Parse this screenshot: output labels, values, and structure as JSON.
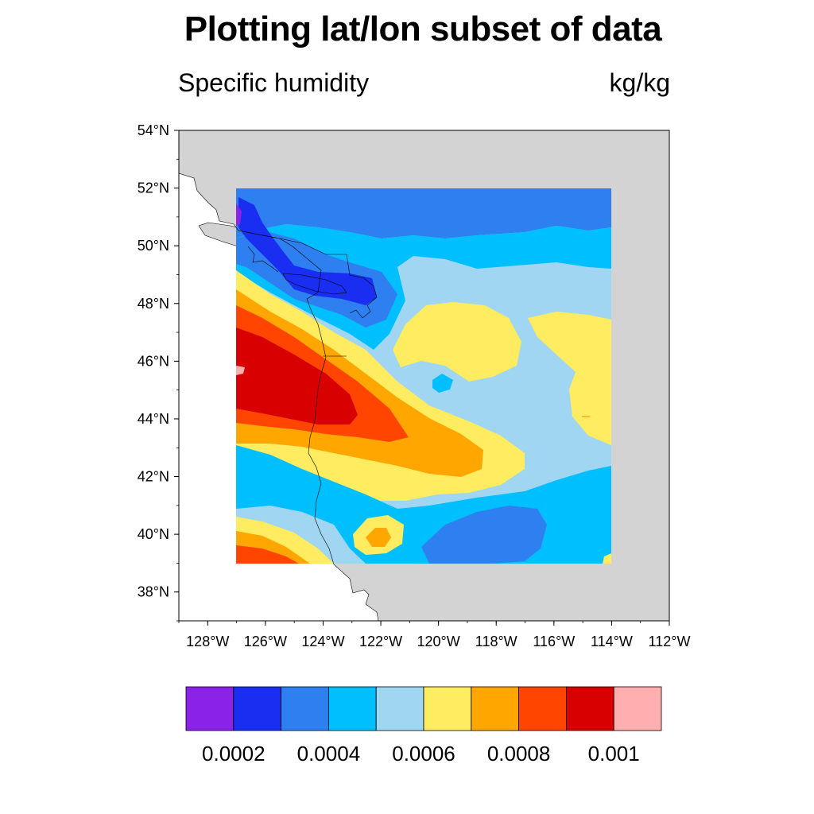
{
  "title": "Plotting lat/lon subset of data",
  "subtitle_left": "Specific humidity",
  "subtitle_right": "kg/kg",
  "map": {
    "lon_range": [
      -129,
      -112
    ],
    "lat_range": [
      37,
      54
    ],
    "data_box": {
      "lon": [
        -127,
        -114
      ],
      "lat": [
        39,
        52
      ]
    },
    "land_color": "#d3d3d3",
    "ocean_color": "#ffffff",
    "x_ticks": [
      "128°W",
      "126°W",
      "124°W",
      "122°W",
      "120°W",
      "118°W",
      "116°W",
      "114°W",
      "112°W"
    ],
    "y_ticks": [
      "38°N",
      "40°N",
      "42°N",
      "44°N",
      "46°N",
      "48°N",
      "50°N",
      "52°N",
      "54°N"
    ]
  },
  "colorbar": {
    "colors": [
      "#8a22e8",
      "#1a2ef2",
      "#2e7ff0",
      "#00bfff",
      "#a0d6f2",
      "#ffec60",
      "#ffa600",
      "#ff4500",
      "#d80000",
      "#ffafaf"
    ],
    "labels": [
      "0.0002",
      "0.0004",
      "0.0006",
      "0.0008",
      "0.001"
    ]
  }
}
